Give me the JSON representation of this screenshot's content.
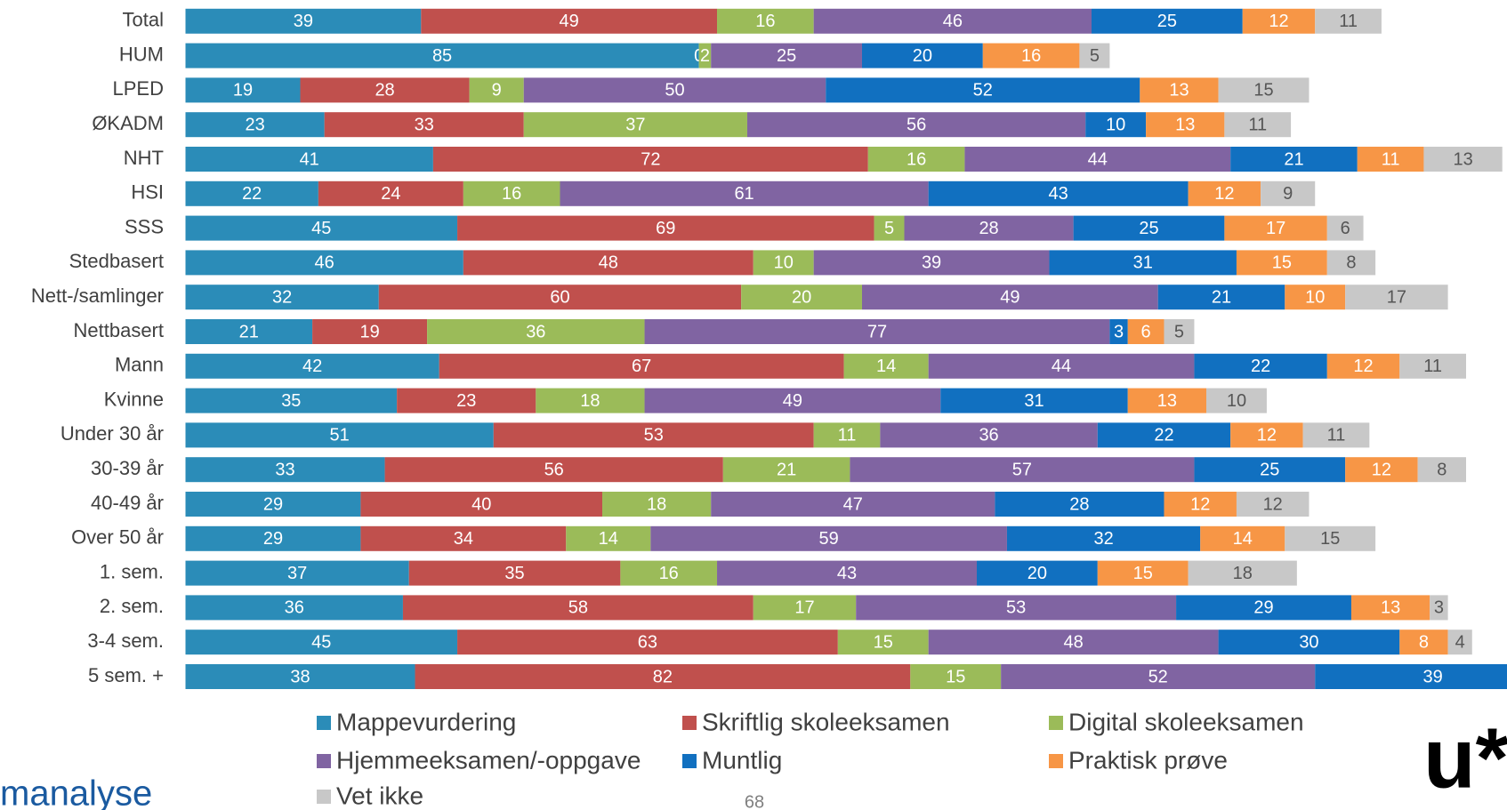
{
  "chart_data": {
    "type": "stacked_bar_horizontal",
    "categories": [
      "Total",
      "HUM",
      "LPED",
      "ØKADM",
      "NHT",
      "HSI",
      "SSS",
      "Stedbasert",
      "Nett-/samlinger",
      "Nettbasert",
      "Mann",
      "Kvinne",
      "Under 30 år",
      "30-39 år",
      "40-49 år",
      "Over 50 år",
      "1. sem.",
      "2. sem.",
      "3-4 sem.",
      "5 sem. +"
    ],
    "series": [
      {
        "name": "Mappevurdering",
        "color": "#2b8cb8",
        "values": [
          39,
          85,
          19,
          23,
          41,
          22,
          45,
          46,
          32,
          21,
          42,
          35,
          51,
          33,
          29,
          29,
          37,
          36,
          45,
          38
        ]
      },
      {
        "name": "Skriftlig skoleeksamen",
        "color": "#c0504d",
        "values": [
          49,
          0,
          28,
          33,
          72,
          24,
          69,
          48,
          60,
          19,
          67,
          23,
          53,
          56,
          40,
          34,
          35,
          58,
          63,
          82
        ]
      },
      {
        "name": "Digital skoleeksamen",
        "color": "#9bbb59",
        "values": [
          16,
          2,
          9,
          37,
          16,
          16,
          5,
          10,
          20,
          36,
          14,
          18,
          11,
          21,
          18,
          14,
          16,
          17,
          15,
          15
        ]
      },
      {
        "name": "Hjemmeeksamen/-oppgave",
        "color": "#8064a2",
        "values": [
          46,
          25,
          50,
          56,
          44,
          61,
          28,
          39,
          49,
          77,
          44,
          49,
          36,
          57,
          47,
          59,
          43,
          53,
          48,
          52
        ]
      },
      {
        "name": "Muntlig",
        "color": "#1170c0",
        "values": [
          25,
          20,
          52,
          10,
          21,
          43,
          25,
          31,
          21,
          3,
          22,
          31,
          22,
          25,
          28,
          32,
          20,
          29,
          30,
          39
        ]
      },
      {
        "name": "Praktisk prøve",
        "color": "#f79646",
        "values": [
          12,
          16,
          13,
          13,
          11,
          12,
          17,
          15,
          10,
          6,
          12,
          13,
          12,
          12,
          12,
          14,
          15,
          13,
          8,
          null
        ]
      },
      {
        "name": "Vet ikke",
        "color": "#c8c8c8",
        "values": [
          11,
          5,
          15,
          11,
          13,
          9,
          6,
          8,
          17,
          5,
          11,
          10,
          11,
          8,
          12,
          15,
          18,
          3,
          4,
          null
        ]
      }
    ]
  },
  "footer": {
    "logo_left": "manalyse",
    "page_number": "68",
    "logo_right": "u*"
  }
}
